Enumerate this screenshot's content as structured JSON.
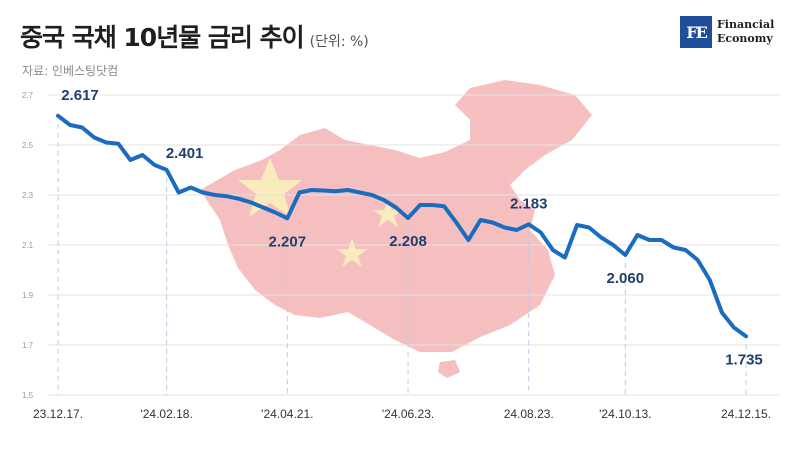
{
  "header": {
    "title": "중국 국채 10년물 금리 추이",
    "unit": "(단위: %)",
    "source": "자료: 인베스팅닷컴"
  },
  "logo": {
    "mark": "FE",
    "line1": "Financial",
    "line2": "Economy"
  },
  "colors": {
    "line": "#1a6cc0",
    "title": "#1f1f1f",
    "label": "#1f3f6e",
    "logo": "#1f4e9c",
    "background_map": "#e88a8a",
    "flag_star": "#f2d04a"
  },
  "background_image": "china-flag-map",
  "chart_data": {
    "type": "line",
    "title": "중국 국채 10년물 금리 추이",
    "xlabel": "",
    "ylabel": "",
    "ylim": [
      1.5,
      2.7
    ],
    "yticks": [
      1.5,
      1.7,
      1.9,
      2.1,
      2.3,
      2.5,
      2.7
    ],
    "grid": true,
    "x_tick_labels": [
      "23.12.17.",
      "'24.02.18.",
      "'24.04.21.",
      "'24.06.23.",
      "24.08.23.",
      "'24.10.13.",
      "24.12.15."
    ],
    "x_tick_index": [
      0,
      9,
      19,
      29,
      39,
      47,
      57
    ],
    "series": [
      {
        "values": [
          2.617,
          2.58,
          2.57,
          2.53,
          2.51,
          2.505,
          2.44,
          2.46,
          2.42,
          2.401,
          2.31,
          2.33,
          2.31,
          2.3,
          2.295,
          2.285,
          2.27,
          2.25,
          2.23,
          2.207,
          2.31,
          2.32,
          2.318,
          2.315,
          2.32,
          2.31,
          2.3,
          2.28,
          2.25,
          2.208,
          2.26,
          2.26,
          2.255,
          2.19,
          2.12,
          2.2,
          2.19,
          2.17,
          2.16,
          2.183,
          2.15,
          2.08,
          2.05,
          2.18,
          2.17,
          2.13,
          2.1,
          2.06,
          2.14,
          2.12,
          2.12,
          2.09,
          2.08,
          2.04,
          1.96,
          1.83,
          1.77,
          1.735
        ]
      }
    ],
    "data_labels": [
      {
        "index": 0,
        "text": "2.617"
      },
      {
        "index": 9,
        "text": "2.401"
      },
      {
        "index": 19,
        "text": "2.207"
      },
      {
        "index": 29,
        "text": "2.208"
      },
      {
        "index": 39,
        "text": "2.183"
      },
      {
        "index": 47,
        "text": "2.060"
      },
      {
        "index": 57,
        "text": "1.735"
      }
    ]
  }
}
